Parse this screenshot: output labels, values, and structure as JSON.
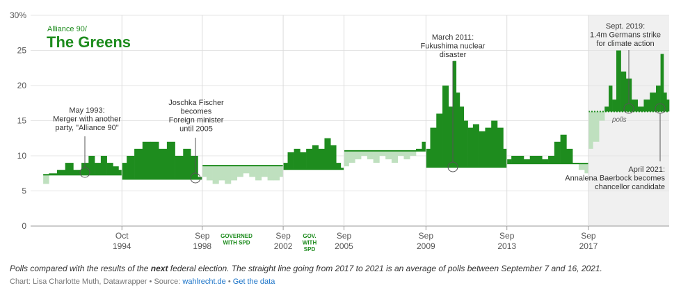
{
  "chart_data": {
    "type": "area",
    "title_small": "Alliance 90/",
    "title": "The Greens",
    "ylim": [
      0,
      30
    ],
    "y_ticks": [
      0,
      5,
      10,
      15,
      20,
      25,
      30
    ],
    "y_tick_labels": [
      "0",
      "5",
      "10",
      "15",
      "20",
      "25",
      "30%"
    ],
    "x_ticks": [
      {
        "year": 1994.79,
        "month": "Oct",
        "yr": "1994"
      },
      {
        "year": 1998.74,
        "month": "Sep",
        "yr": "1998"
      },
      {
        "year": 2002.72,
        "month": "Sep",
        "yr": "2002"
      },
      {
        "year": 2005.71,
        "month": "Sep",
        "yr": "2005"
      },
      {
        "year": 2009.74,
        "month": "Sep",
        "yr": "2009"
      },
      {
        "year": 2013.72,
        "month": "Sep",
        "yr": "2013"
      },
      {
        "year": 2017.73,
        "month": "Sep",
        "yr": "2017"
      }
    ],
    "x_range": [
      1990.3,
      2021.7
    ],
    "elections": [
      {
        "start": 1990.92,
        "end": 1994.79,
        "result": 7.3
      },
      {
        "start": 1994.79,
        "end": 1998.74,
        "result": 6.7
      },
      {
        "start": 1998.74,
        "end": 2002.72,
        "result": 8.6
      },
      {
        "start": 2002.72,
        "end": 2005.71,
        "result": 8.1
      },
      {
        "start": 2005.71,
        "end": 2009.74,
        "result": 10.7
      },
      {
        "start": 2009.74,
        "end": 2013.72,
        "result": 8.4
      },
      {
        "start": 2013.72,
        "end": 2017.73,
        "result": 8.9
      },
      {
        "start": 2017.73,
        "end": 2021.7,
        "result": 16.3
      }
    ],
    "polls": [
      {
        "x": [
          1991.0,
          1991.4,
          1991.8,
          1992.2,
          1992.6,
          1993.0,
          1993.3,
          1993.6,
          1993.9,
          1994.2,
          1994.5,
          1994.75
        ],
        "y": [
          6.0,
          7.5,
          8.0,
          9.0,
          8.0,
          9.0,
          10.0,
          9.0,
          10.0,
          9.0,
          8.5,
          8.0
        ]
      },
      {
        "x": [
          1994.85,
          1995.2,
          1995.6,
          1996.0,
          1996.4,
          1996.8,
          1997.2,
          1997.6,
          1998.0,
          1998.35,
          1998.7
        ],
        "y": [
          9.0,
          10.0,
          11.0,
          12.0,
          12.0,
          11.0,
          12.0,
          10.0,
          11.0,
          10.0,
          7.0
        ]
      },
      {
        "x": [
          1998.8,
          1999.1,
          1999.4,
          1999.7,
          2000.0,
          2000.3,
          2000.6,
          2000.9,
          2001.2,
          2001.5,
          2001.8,
          2002.1,
          2002.4,
          2002.68
        ],
        "y": [
          7.0,
          6.5,
          6.0,
          6.5,
          6.0,
          6.5,
          7.0,
          7.5,
          7.0,
          6.5,
          7.0,
          6.5,
          6.5,
          7.0
        ]
      },
      {
        "x": [
          2002.78,
          2003.1,
          2003.4,
          2003.7,
          2004.0,
          2004.3,
          2004.6,
          2004.9,
          2005.2,
          2005.45,
          2005.65
        ],
        "y": [
          9.0,
          10.5,
          11.0,
          10.5,
          11.0,
          11.5,
          11.0,
          12.5,
          11.5,
          9.0,
          8.3
        ]
      },
      {
        "x": [
          2005.8,
          2006.1,
          2006.4,
          2006.7,
          2007.0,
          2007.3,
          2007.6,
          2007.9,
          2008.2,
          2008.5,
          2008.8,
          2009.1,
          2009.4,
          2009.68
        ],
        "y": [
          8.5,
          9.0,
          9.5,
          10.0,
          9.5,
          9.0,
          10.0,
          9.5,
          9.0,
          10.0,
          9.5,
          10.0,
          11.0,
          12.0
        ]
      },
      {
        "x": [
          2009.8,
          2010.1,
          2010.4,
          2010.7,
          2011.0,
          2011.15,
          2011.3,
          2011.5,
          2011.7,
          2011.9,
          2012.2,
          2012.5,
          2012.8,
          2013.1,
          2013.4,
          2013.68
        ],
        "y": [
          11.0,
          14.0,
          16.0,
          20.0,
          17.0,
          23.5,
          19.0,
          17.0,
          15.0,
          14.0,
          14.5,
          13.5,
          14.0,
          15.0,
          14.0,
          11.0
        ]
      },
      {
        "x": [
          2013.78,
          2014.1,
          2014.4,
          2014.7,
          2015.0,
          2015.3,
          2015.6,
          2015.9,
          2016.2,
          2016.5,
          2016.8,
          2017.1,
          2017.4,
          2017.68
        ],
        "y": [
          9.5,
          10.0,
          10.0,
          9.5,
          10.0,
          10.0,
          9.5,
          10.0,
          12.0,
          13.0,
          11.0,
          9.0,
          8.0,
          7.5
        ]
      },
      {
        "x": [
          2017.8,
          2018.1,
          2018.4,
          2018.65,
          2018.8,
          2019.0,
          2019.2,
          2019.45,
          2019.7,
          2020.0,
          2020.3,
          2020.6,
          2020.9,
          2021.2,
          2021.35,
          2021.5,
          2021.65
        ],
        "y": [
          11.0,
          12.0,
          15.0,
          17.0,
          20.0,
          18.0,
          25.0,
          22.0,
          21.0,
          18.0,
          17.0,
          18.0,
          19.0,
          20.0,
          24.5,
          19.0,
          18.0
        ]
      }
    ],
    "annotations": [
      {
        "lines": [
          "May 1993:",
          "Merger with another",
          "party, \"Alliance 90\""
        ]
      },
      {
        "lines": [
          "Joschka Fischer",
          "becomes",
          "Foreign minister",
          "until 2005"
        ]
      },
      {
        "lines": [
          "March 2011:",
          "Fukushima nuclear",
          "disaster"
        ]
      },
      {
        "lines": [
          "Sept. 2019:",
          "1.4m Germans strike",
          "for climate action"
        ]
      },
      {
        "lines": [
          "April 2021:",
          "Annalena Baerbock becomes",
          "chancellor candidate"
        ]
      }
    ],
    "government_labels": [
      {
        "lines": [
          "GOVERNED",
          "WITH SPD"
        ]
      },
      {
        "lines": [
          "GOV.",
          "WITH",
          "SPD"
        ]
      }
    ],
    "polls_label": "polls",
    "colors": {
      "above": "#1e8c1e",
      "below": "#bfe0bf",
      "election_line": "#1e8c1e",
      "grid": "#e4e4e4",
      "shade": "#f0f0f0"
    },
    "grid": true
  },
  "note": {
    "before": "Polls compared with the results of the ",
    "emphasis": "next",
    "after": " federal election. The straight line going from 2017 to 2021 is an average of polls between September 7 and 16, 2021."
  },
  "credit": {
    "prefix": "Chart: Lisa Charlotte Muth, Datawrapper • Source: ",
    "source_link": "wahlrecht.de",
    "separator": " • ",
    "data_link": "Get the data"
  }
}
